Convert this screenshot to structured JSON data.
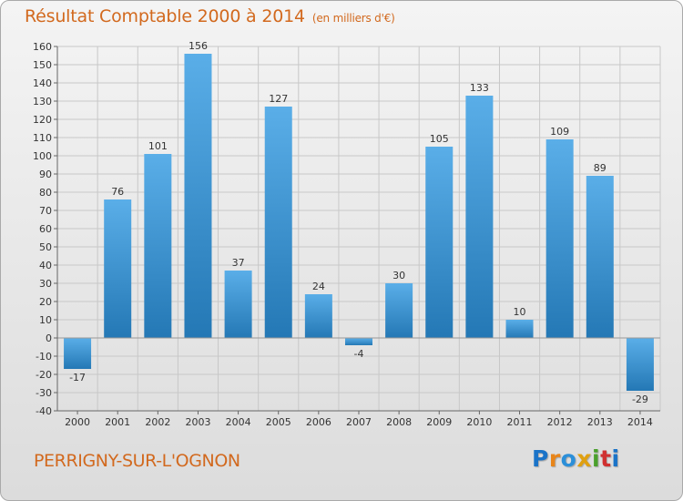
{
  "header": {
    "title": "Résultat Comptable 2000 à 2014",
    "subtitle": "(en milliers d'€)"
  },
  "footer": {
    "commune": "PERRIGNY-SUR-L'OGNON",
    "logo": [
      "P",
      "r",
      "o",
      "x",
      "i",
      "t",
      "i"
    ]
  },
  "colors": {
    "title": "#d2691e",
    "bar_light": "#5aaee8",
    "bar_dark": "#1f74b0",
    "grid": "#c8c8c8",
    "logo": [
      "#1a73c8",
      "#e8851a",
      "#2b8fd9",
      "#e0a010",
      "#4aa02c",
      "#d03030",
      "#1a73c8"
    ]
  },
  "chart_data": {
    "type": "bar",
    "categories": [
      "2000",
      "2001",
      "2002",
      "2003",
      "2004",
      "2005",
      "2006",
      "2007",
      "2008",
      "2009",
      "2010",
      "2011",
      "2012",
      "2013",
      "2014"
    ],
    "values": [
      -17,
      76,
      101,
      156,
      37,
      127,
      24,
      -4,
      30,
      105,
      133,
      10,
      109,
      89,
      -29
    ],
    "value_labels": [
      "-17",
      "76",
      "101",
      "156",
      "37",
      "127",
      "24",
      "-4",
      "30",
      "105",
      "133",
      "10",
      "109",
      "89",
      "-29"
    ],
    "yticks": [
      160,
      150,
      140,
      130,
      120,
      110,
      100,
      90,
      80,
      70,
      60,
      50,
      40,
      30,
      20,
      10,
      0,
      -10,
      -20,
      -30,
      -40
    ],
    "ylim": [
      -40,
      160
    ],
    "title": "Résultat Comptable 2000 à 2014",
    "xlabel": "",
    "ylabel": "",
    "grid": true,
    "legend": "none"
  }
}
